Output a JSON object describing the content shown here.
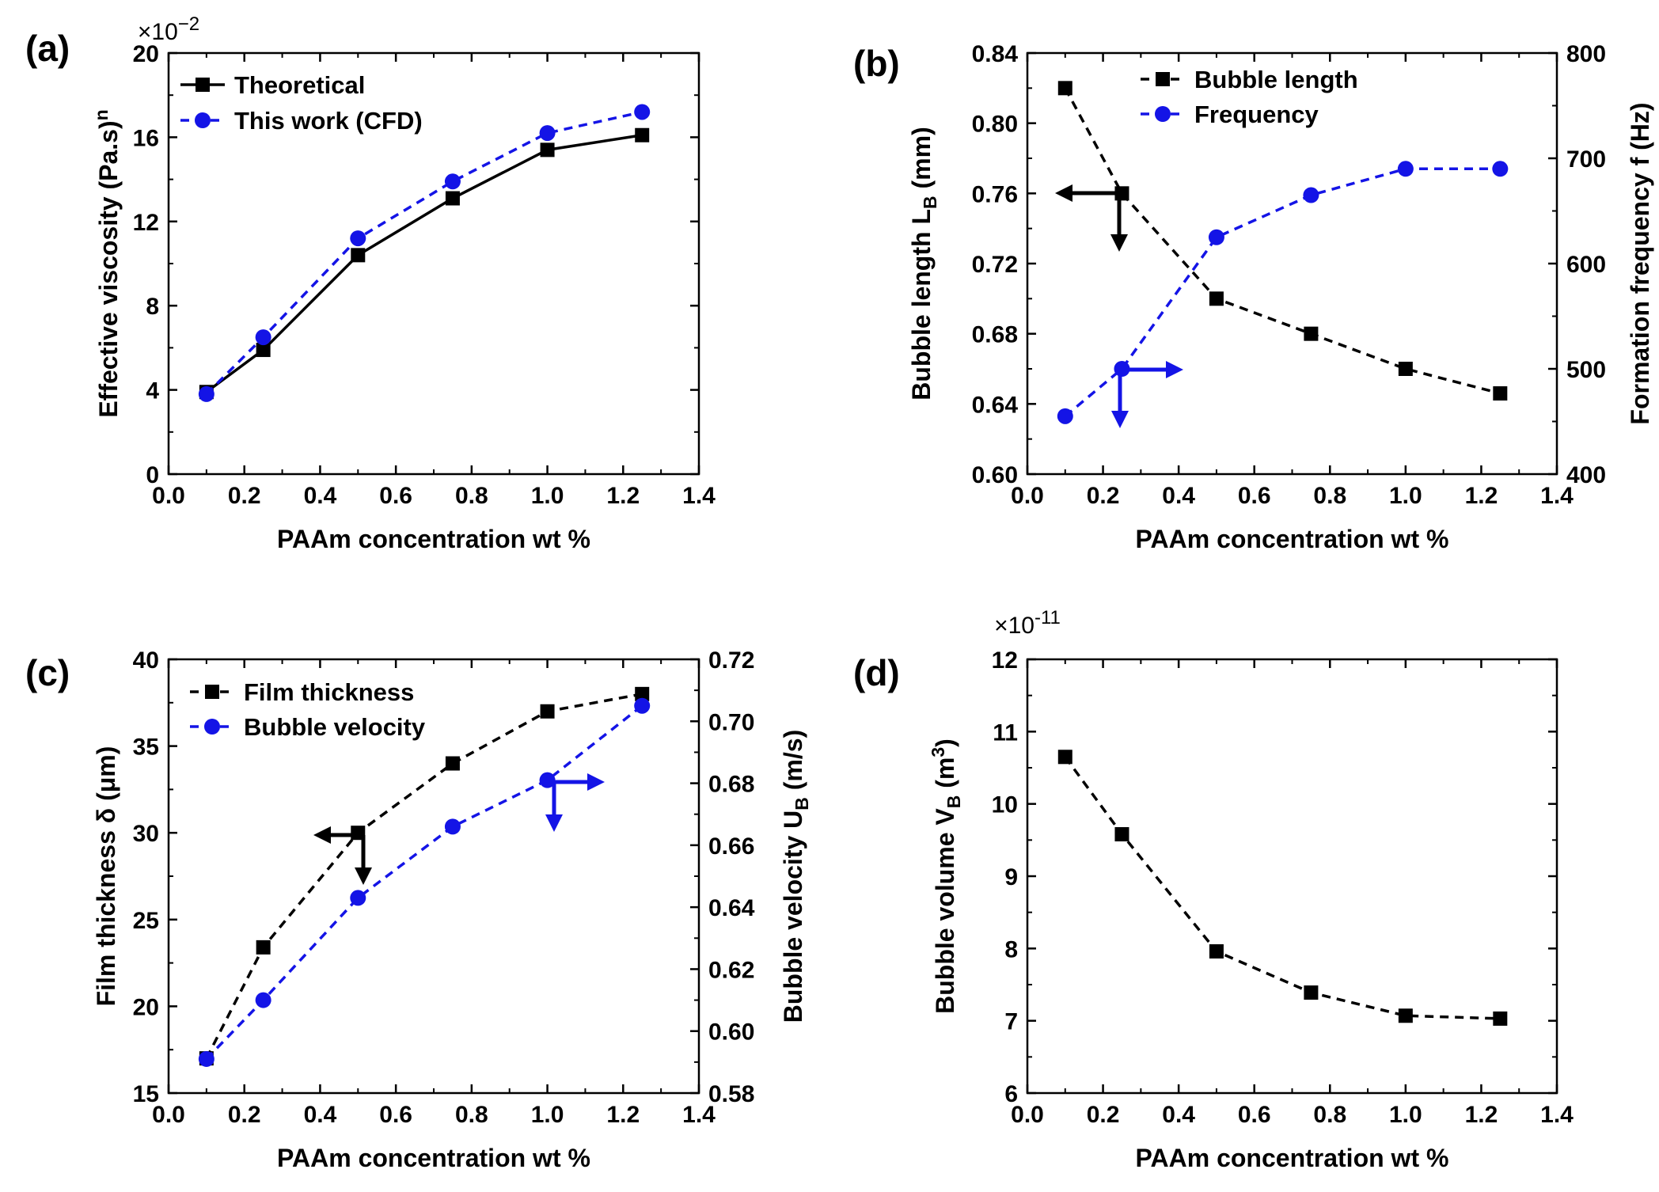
{
  "colors": {
    "black": "#000000",
    "blue": "#1414e6"
  },
  "panels": [
    {
      "label": "(a)",
      "xlabel": "PAAm concentration wt %",
      "ylabel": {
        "text": "Effective viscosity (Pa.s",
        "sup": "n",
        "tail": ")"
      },
      "multiplier": {
        "base": "×10",
        "exp": "−2"
      },
      "xticks": [
        "0.0",
        "0.2",
        "0.4",
        "0.6",
        "0.8",
        "1.0",
        "1.2",
        "1.4"
      ],
      "yticks": [
        "0",
        "4",
        "8",
        "12",
        "16",
        "20"
      ],
      "legend": [
        {
          "label": "Theoretical"
        },
        {
          "label": "This work (CFD)"
        }
      ]
    },
    {
      "label": "(b)",
      "xlabel": "PAAm concentration wt %",
      "ylabel": {
        "text": "Bubble length L",
        "sub": "B",
        "tail": " (mm)"
      },
      "y2label": "Formation frequency f (Hz)",
      "xticks": [
        "0.0",
        "0.2",
        "0.4",
        "0.6",
        "0.8",
        "1.0",
        "1.2",
        "1.4"
      ],
      "yticks": [
        "0.60",
        "0.64",
        "0.68",
        "0.72",
        "0.76",
        "0.80",
        "0.84"
      ],
      "y2ticks": [
        "400",
        "500",
        "600",
        "700",
        "800"
      ],
      "legend": [
        {
          "label": "Bubble length"
        },
        {
          "label": "Frequency"
        }
      ]
    },
    {
      "label": "(c)",
      "xlabel": "PAAm concentration wt %",
      "ylabel": {
        "text": "Film thickness δ (μm)"
      },
      "y2label": {
        "text": "Bubble velocity U",
        "sub": "B",
        "tail": " (m/s)"
      },
      "xticks": [
        "0.0",
        "0.2",
        "0.4",
        "0.6",
        "0.8",
        "1.0",
        "1.2",
        "1.4"
      ],
      "yticks": [
        "15",
        "20",
        "25",
        "30",
        "35",
        "40"
      ],
      "y2ticks": [
        "0.58",
        "0.60",
        "0.62",
        "0.64",
        "0.66",
        "0.68",
        "0.70",
        "0.72"
      ],
      "legend": [
        {
          "label": "Film thickness"
        },
        {
          "label": "Bubble velocity"
        }
      ]
    },
    {
      "label": "(d)",
      "xlabel": "PAAm concentration wt %",
      "ylabel": {
        "text": "Bubble volume  V",
        "sub": "B",
        "tail": " (m",
        "sup": "3",
        "tail2": ")"
      },
      "multiplier": {
        "base": "×10",
        "exp": "-11"
      },
      "xticks": [
        "0.0",
        "0.2",
        "0.4",
        "0.6",
        "0.8",
        "1.0",
        "1.2",
        "1.4"
      ],
      "yticks": [
        "6",
        "7",
        "8",
        "9",
        "10",
        "11",
        "12"
      ]
    }
  ],
  "chart_data": [
    {
      "type": "line",
      "x": [
        0.1,
        0.25,
        0.5,
        0.75,
        1.0,
        1.25
      ],
      "xlim": [
        0,
        1.4
      ],
      "ylim": [
        0,
        20
      ],
      "series": [
        {
          "name": "Theoretical",
          "values": [
            3.9,
            5.9,
            10.4,
            13.1,
            15.4,
            16.1
          ],
          "color": "#000000",
          "marker": "square",
          "line": "solid"
        },
        {
          "name": "This work (CFD)",
          "values": [
            3.8,
            6.5,
            11.2,
            13.9,
            16.2,
            17.2
          ],
          "color": "#1414e6",
          "marker": "circle",
          "line": "dashed"
        }
      ],
      "legend_position": "top-left",
      "grid": false
    },
    {
      "type": "line",
      "x": [
        0.1,
        0.25,
        0.5,
        0.75,
        1.0,
        1.25
      ],
      "xlim": [
        0,
        1.4
      ],
      "ylim": [
        0.6,
        0.84
      ],
      "y2lim": [
        400,
        800
      ],
      "series": [
        {
          "name": "Bubble length",
          "values": [
            0.82,
            0.76,
            0.7,
            0.68,
            0.66,
            0.646
          ],
          "axis": "left",
          "color": "#000000",
          "marker": "square",
          "line": "dashed"
        },
        {
          "name": "Frequency",
          "values": [
            455,
            500,
            625,
            665,
            690,
            690
          ],
          "axis": "right",
          "color": "#1414e6",
          "marker": "circle",
          "line": "dashed"
        }
      ],
      "legend_position": "top-center",
      "grid": false
    },
    {
      "type": "line",
      "x": [
        0.1,
        0.25,
        0.5,
        0.75,
        1.0,
        1.25
      ],
      "xlim": [
        0,
        1.4
      ],
      "ylim": [
        15,
        40
      ],
      "y2lim": [
        0.58,
        0.72
      ],
      "series": [
        {
          "name": "Film thickness",
          "values": [
            17,
            23.4,
            30,
            34,
            37,
            38
          ],
          "axis": "left",
          "color": "#000000",
          "marker": "square",
          "line": "dashed"
        },
        {
          "name": "Bubble velocity",
          "values": [
            0.591,
            0.61,
            0.643,
            0.666,
            0.681,
            0.705
          ],
          "axis": "right",
          "color": "#1414e6",
          "marker": "circle",
          "line": "dashed"
        }
      ],
      "legend_position": "top-left",
      "grid": false
    },
    {
      "type": "line",
      "x": [
        0.1,
        0.25,
        0.5,
        0.75,
        1.0,
        1.25
      ],
      "xlim": [
        0,
        1.4
      ],
      "ylim": [
        6,
        12
      ],
      "series": [
        {
          "values": [
            10.65,
            9.58,
            7.96,
            7.39,
            7.07,
            7.03
          ],
          "color": "#000000",
          "marker": "square",
          "line": "dashed"
        }
      ],
      "grid": false
    }
  ]
}
